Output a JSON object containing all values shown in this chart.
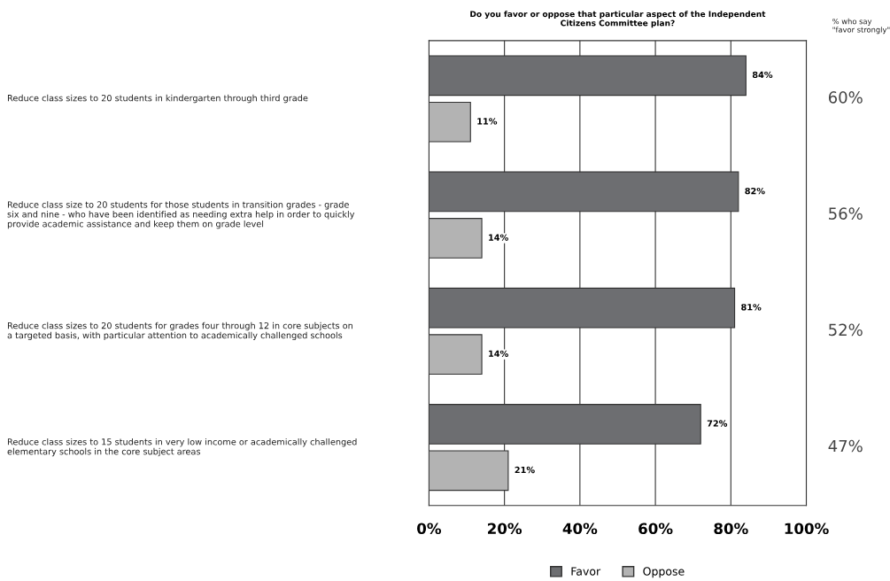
{
  "chart_data": {
    "type": "bar",
    "orientation": "horizontal",
    "title": "Do you favor or oppose that particular aspect of the Independent\nCitizens Committee plan?",
    "categories": [
      "Reduce class sizes to 20 students in kindergarten through third grade",
      "Reduce class size to 20 students for those students in transition grades - grade\nsix and nine - who have been identified as needing extra help in order to quickly\nprovide academic assistance and keep them on grade level",
      "Reduce class sizes to 20 students for grades four through 12 in core subjects on\na targeted basis, with particular attention to academically challenged schools",
      "Reduce class sizes to 15 students in very low income or academically challenged\nelementary schools in the core subject areas"
    ],
    "series": [
      {
        "name": "Favor",
        "color": "#6d6e71",
        "values": [
          84,
          82,
          81,
          72
        ],
        "value_labels": [
          "84%",
          "82%",
          "81%",
          "72%"
        ]
      },
      {
        "name": "Oppose",
        "color": "#b3b3b3",
        "values": [
          11,
          14,
          14,
          21
        ],
        "value_labels": [
          "11%",
          "14%",
          "14%",
          "21%"
        ]
      }
    ],
    "xlim": [
      0,
      100
    ],
    "xticks": [
      {
        "value": 0,
        "label": "0%"
      },
      {
        "value": 20,
        "label": "20%"
      },
      {
        "value": 40,
        "label": "40%"
      },
      {
        "value": 60,
        "label": "60%"
      },
      {
        "value": 80,
        "label": "80%"
      },
      {
        "value": 100,
        "label": "100%"
      }
    ],
    "grid": "x",
    "legend": "bottom",
    "annotations": [
      "% who say\n\"favor strongly\"",
      "60%",
      "56%",
      "52%",
      "47%"
    ]
  }
}
